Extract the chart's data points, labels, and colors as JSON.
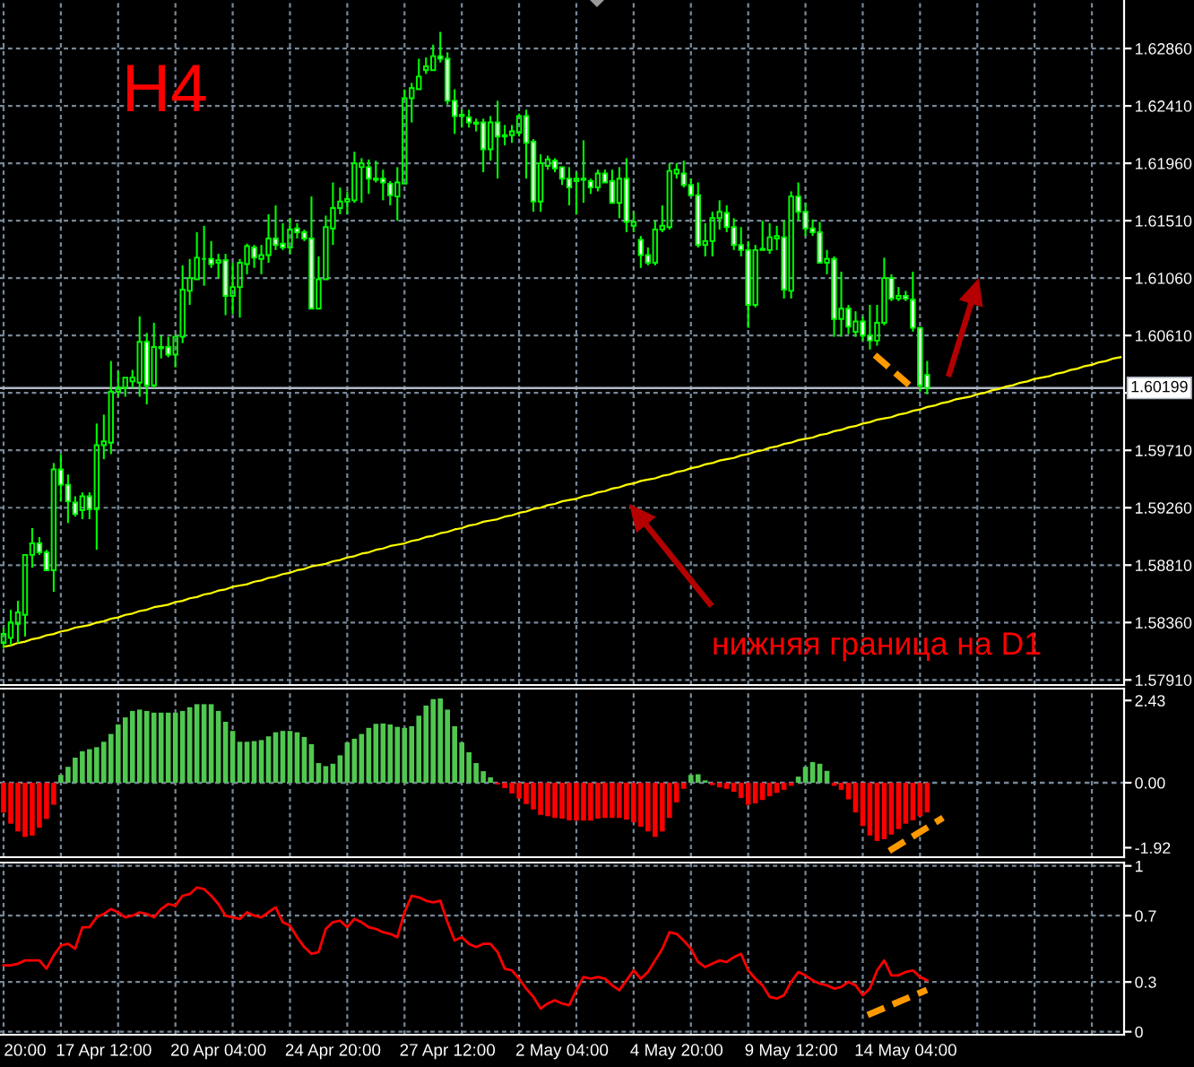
{
  "chart_data": [
    {
      "type": "candlestick",
      "categories": [
        null,
        null,
        null,
        null,
        null,
        null,
        null,
        null,
        null,
        null,
        null,
        null,
        null,
        null,
        null,
        null,
        null,
        null,
        null,
        null,
        null,
        null,
        null,
        null,
        null,
        null,
        null,
        null,
        null,
        null,
        null,
        null,
        null,
        null,
        null,
        null,
        null,
        null,
        null,
        null,
        null,
        null,
        null,
        null,
        null,
        null,
        null,
        null,
        null,
        null,
        null,
        null,
        null,
        null,
        null,
        null,
        null,
        null,
        null,
        null,
        null,
        null,
        null,
        null,
        null,
        null,
        null,
        null,
        null,
        null,
        null,
        null,
        null,
        null,
        null,
        null,
        null,
        null,
        null,
        null,
        null,
        null,
        null,
        null,
        null,
        null,
        null,
        null,
        null,
        null,
        null,
        null,
        null,
        null,
        null,
        null,
        null,
        null,
        null,
        null,
        null,
        null,
        null,
        null,
        null,
        null,
        null,
        null,
        null,
        null,
        null,
        null,
        null,
        null,
        null,
        null,
        null,
        null,
        null,
        null,
        null,
        null,
        null,
        null,
        null,
        null,
        null,
        null,
        null,
        null,
        null,
        null,
        null,
        null,
        null,
        null,
        null,
        null,
        null,
        null,
        null,
        null,
        null,
        null,
        null,
        null,
        null,
        null,
        null,
        null,
        null,
        null,
        null,
        null,
        null,
        null,
        null
      ],
      "ohlc": [
        [
          1.582,
          1.5832,
          1.5816,
          1.5827
        ],
        [
          1.5824,
          1.5846,
          1.5818,
          1.5836
        ],
        [
          1.5835,
          1.5853,
          1.582,
          1.5844
        ],
        [
          1.5842,
          1.5889,
          1.5825,
          1.5889
        ],
        [
          1.5889,
          1.591,
          1.5879,
          1.5898
        ],
        [
          1.5898,
          1.5903,
          1.5889,
          1.5891
        ],
        [
          1.5891,
          1.5893,
          1.5877,
          1.5877
        ],
        [
          1.5877,
          1.5961,
          1.586,
          1.5956
        ],
        [
          1.5956,
          1.5968,
          1.5931,
          1.5944
        ],
        [
          1.5944,
          1.5952,
          1.5914,
          1.5931
        ],
        [
          1.593,
          1.5935,
          1.5919,
          1.5921
        ],
        [
          1.5924,
          1.5938,
          1.5917,
          1.5935
        ],
        [
          1.5935,
          1.5938,
          1.5917,
          1.5925
        ],
        [
          1.5925,
          1.5992,
          1.5893,
          1.5975
        ],
        [
          1.5975,
          1.5999,
          1.5964,
          1.5978
        ],
        [
          1.5977,
          1.6041,
          1.5968,
          1.6017
        ],
        [
          1.6017,
          1.6033,
          1.6013,
          1.602
        ],
        [
          1.602,
          1.6028,
          1.6013,
          1.6028
        ],
        [
          1.6025,
          1.6034,
          1.602,
          1.6028
        ],
        [
          1.6024,
          1.6076,
          1.6013,
          1.6056
        ],
        [
          1.6056,
          1.6063,
          1.6007,
          1.6022
        ],
        [
          1.6022,
          1.6071,
          1.602,
          1.6052
        ],
        [
          1.6051,
          1.6061,
          1.6043,
          1.6052
        ],
        [
          1.6052,
          1.606,
          1.6044,
          1.6046
        ],
        [
          1.6046,
          1.6062,
          1.6036,
          1.606
        ],
        [
          1.606,
          1.6116,
          1.6055,
          1.6097
        ],
        [
          1.6096,
          1.6121,
          1.6085,
          1.6106
        ],
        [
          1.6105,
          1.6142,
          1.6105,
          1.6122
        ],
        [
          1.6121,
          1.6147,
          1.61,
          1.6121
        ],
        [
          1.6121,
          1.6135,
          1.6114,
          1.6117
        ],
        [
          1.6118,
          1.6125,
          1.6106,
          1.612
        ],
        [
          1.612,
          1.6125,
          1.6077,
          1.6092
        ],
        [
          1.6092,
          1.6118,
          1.6078,
          1.6099
        ],
        [
          1.6099,
          1.6121,
          1.6075,
          1.6118
        ],
        [
          1.6117,
          1.6133,
          1.6109,
          1.6131
        ],
        [
          1.613,
          1.6132,
          1.6114,
          1.6122
        ],
        [
          1.6121,
          1.6132,
          1.6109,
          1.6124
        ],
        [
          1.6124,
          1.6156,
          1.6118,
          1.6137
        ],
        [
          1.6137,
          1.6163,
          1.6128,
          1.6132
        ],
        [
          1.6133,
          1.6149,
          1.6128,
          1.613
        ],
        [
          1.613,
          1.6153,
          1.6125,
          1.6144
        ],
        [
          1.6145,
          1.6149,
          1.6137,
          1.6142
        ],
        [
          1.6142,
          1.6144,
          1.6135,
          1.6137
        ],
        [
          1.6137,
          1.617,
          1.6082,
          1.6082
        ],
        [
          1.6082,
          1.6123,
          1.6082,
          1.6105
        ],
        [
          1.6105,
          1.6155,
          1.6105,
          1.6146
        ],
        [
          1.6145,
          1.6181,
          1.6132,
          1.6161
        ],
        [
          1.6161,
          1.6177,
          1.6156,
          1.6166
        ],
        [
          1.6166,
          1.6174,
          1.6156,
          1.6168
        ],
        [
          1.6167,
          1.6205,
          1.6165,
          1.6196
        ],
        [
          1.6193,
          1.62,
          1.6165,
          1.6196
        ],
        [
          1.6193,
          1.6199,
          1.6172,
          1.6184
        ],
        [
          1.6183,
          1.6198,
          1.6181,
          1.6184
        ],
        [
          1.6184,
          1.6191,
          1.6167,
          1.6181
        ],
        [
          1.618,
          1.6182,
          1.6163,
          1.6171
        ],
        [
          1.617,
          1.6193,
          1.6151,
          1.6181
        ],
        [
          1.618,
          1.6254,
          1.618,
          1.6247
        ],
        [
          1.6247,
          1.6259,
          1.6228,
          1.6255
        ],
        [
          1.6254,
          1.6278,
          1.6254,
          1.6264
        ],
        [
          1.6269,
          1.6279,
          1.6266,
          1.6272
        ],
        [
          1.6269,
          1.6289,
          1.6269,
          1.628
        ],
        [
          1.628,
          1.6299,
          1.6275,
          1.6278
        ],
        [
          1.6278,
          1.6283,
          1.6242,
          1.6245
        ],
        [
          1.6245,
          1.6254,
          1.6219,
          1.6233
        ],
        [
          1.6234,
          1.6238,
          1.6224,
          1.6233
        ],
        [
          1.6232,
          1.6238,
          1.6224,
          1.6228
        ],
        [
          1.6228,
          1.6231,
          1.6221,
          1.6227
        ],
        [
          1.6228,
          1.6231,
          1.6189,
          1.6207
        ],
        [
          1.6207,
          1.6233,
          1.6198,
          1.6228
        ],
        [
          1.6228,
          1.6245,
          1.6184,
          1.6217
        ],
        [
          1.6217,
          1.6226,
          1.621,
          1.6218
        ],
        [
          1.6218,
          1.6226,
          1.6212,
          1.6221
        ],
        [
          1.622,
          1.6235,
          1.6217,
          1.6233
        ],
        [
          1.6233,
          1.6238,
          1.6184,
          1.6212
        ],
        [
          1.6213,
          1.6215,
          1.6158,
          1.6166
        ],
        [
          1.6166,
          1.6203,
          1.6158,
          1.6196
        ],
        [
          1.6194,
          1.6202,
          1.6191,
          1.6199
        ],
        [
          1.6198,
          1.62,
          1.6189,
          1.6192
        ],
        [
          1.6193,
          1.6193,
          1.6179,
          1.6184
        ],
        [
          1.6184,
          1.6193,
          1.6163,
          1.6177
        ],
        [
          1.6182,
          1.6189,
          1.6156,
          1.6184
        ],
        [
          1.6183,
          1.6214,
          1.6165,
          1.6184
        ],
        [
          1.6182,
          1.6184,
          1.6172,
          1.6177
        ],
        [
          1.6177,
          1.6191,
          1.6174,
          1.6188
        ],
        [
          1.6188,
          1.6191,
          1.6181,
          1.6181
        ],
        [
          1.6182,
          1.6191,
          1.6165,
          1.6165
        ],
        [
          1.6165,
          1.6193,
          1.6153,
          1.6184
        ],
        [
          1.6184,
          1.62,
          1.6142,
          1.615
        ],
        [
          1.6147,
          1.6158,
          1.6142,
          1.615
        ],
        [
          1.6136,
          1.6139,
          1.6114,
          1.6124
        ],
        [
          1.6124,
          1.613,
          1.6116,
          1.6118
        ],
        [
          1.6118,
          1.6151,
          1.6116,
          1.6144
        ],
        [
          1.6144,
          1.6163,
          1.6142,
          1.6147
        ],
        [
          1.6146,
          1.6196,
          1.6144,
          1.619
        ],
        [
          1.6188,
          1.6196,
          1.6184,
          1.6191
        ],
        [
          1.6188,
          1.6198,
          1.6177,
          1.6179
        ],
        [
          1.6179,
          1.6184,
          1.6171,
          1.6171
        ],
        [
          1.6171,
          1.6181,
          1.613,
          1.6132
        ],
        [
          1.6132,
          1.6149,
          1.6123,
          1.6135
        ],
        [
          1.6135,
          1.6158,
          1.6123,
          1.6153
        ],
        [
          1.6153,
          1.6167,
          1.6144,
          1.6158
        ],
        [
          1.6157,
          1.6163,
          1.6142,
          1.6146
        ],
        [
          1.6146,
          1.6153,
          1.6128,
          1.6132
        ],
        [
          1.6132,
          1.6146,
          1.6123,
          1.6128
        ],
        [
          1.6128,
          1.6135,
          1.6067,
          1.6085
        ],
        [
          1.6085,
          1.6132,
          1.6083,
          1.6128
        ],
        [
          1.6128,
          1.6151,
          1.6128,
          1.6129
        ],
        [
          1.6128,
          1.6149,
          1.6125,
          1.6138
        ],
        [
          1.6137,
          1.6147,
          1.6128,
          1.6139
        ],
        [
          1.6138,
          1.6151,
          1.609,
          1.6097
        ],
        [
          1.6096,
          1.6174,
          1.609,
          1.617
        ],
        [
          1.617,
          1.6181,
          1.6151,
          1.6158
        ],
        [
          1.6158,
          1.6165,
          1.6139,
          1.6145
        ],
        [
          1.6145,
          1.6152,
          1.6139,
          1.6142
        ],
        [
          1.6142,
          1.615,
          1.6118,
          1.6118
        ],
        [
          1.6118,
          1.6128,
          1.6109,
          1.6121
        ],
        [
          1.6121,
          1.6123,
          1.606,
          1.6074
        ],
        [
          1.6074,
          1.6111,
          1.606,
          1.6082
        ],
        [
          1.6082,
          1.6085,
          1.6062,
          1.6068
        ],
        [
          1.6064,
          1.608,
          1.606,
          1.6072
        ],
        [
          1.6072,
          1.6076,
          1.6057,
          1.6061
        ],
        [
          1.6061,
          1.6085,
          1.605,
          1.6057
        ],
        [
          1.6057,
          1.6085,
          1.6053,
          1.6071
        ],
        [
          1.6071,
          1.6122,
          1.6069,
          1.6106
        ],
        [
          1.6106,
          1.6109,
          1.6088,
          1.609
        ],
        [
          1.609,
          1.6099,
          1.6088,
          1.6092
        ],
        [
          1.6092,
          1.6096,
          1.6088,
          1.609
        ],
        [
          1.6089,
          1.6111,
          1.6064,
          1.6067
        ],
        [
          1.6067,
          1.6067,
          1.6017,
          1.6022
        ],
        [
          1.603,
          1.6041,
          1.6015,
          1.60199
        ],
        null,
        null,
        null,
        null,
        null,
        null,
        null,
        null,
        null,
        null,
        null,
        null,
        null,
        null,
        null,
        null,
        null,
        null,
        null,
        null,
        null,
        null,
        null,
        null,
        null,
        null,
        null
      ],
      "color": "#00ff00",
      "series": [
        {
          "type": "line",
          "color": "#ffff00",
          "values": [
            1.5817,
            1.5818,
            1.582,
            1.5821,
            1.5823,
            1.5824,
            1.5826,
            1.5827,
            1.5829,
            1.583,
            1.5832,
            1.5833,
            1.5834,
            1.5836,
            1.5837,
            1.5839,
            1.584,
            1.5842,
            1.5843,
            1.5845,
            1.5846,
            1.5848,
            1.5849,
            1.585,
            1.5852,
            1.5853,
            1.5855,
            1.5856,
            1.5858,
            1.5859,
            1.5861,
            1.5862,
            1.5864,
            1.5865,
            1.5866,
            1.5868,
            1.5869,
            1.5871,
            1.5872,
            1.5874,
            1.5875,
            1.5877,
            1.5878,
            1.588,
            1.5881,
            1.5882,
            1.5884,
            1.5885,
            1.5887,
            1.5888,
            1.589,
            1.5891,
            1.5893,
            1.5894,
            1.5896,
            1.5897,
            1.5898,
            1.59,
            1.5901,
            1.5903,
            1.5904,
            1.5906,
            1.5907,
            1.5909,
            1.591,
            1.5912,
            1.5913,
            1.5915,
            1.5916,
            1.5917,
            1.5919,
            1.592,
            1.5922,
            1.5923,
            1.5925,
            1.5926,
            1.5928,
            1.5929,
            1.5931,
            1.5932,
            1.5933,
            1.5935,
            1.5936,
            1.5938,
            1.5939,
            1.5941,
            1.5942,
            1.5944,
            1.5945,
            1.5947,
            1.5948,
            1.5949,
            1.5951,
            1.5952,
            1.5954,
            1.5955,
            1.5957,
            1.5958,
            1.596,
            1.5961,
            1.5963,
            1.5964,
            1.5965,
            1.5967,
            1.5968,
            1.597,
            1.5971,
            1.5973,
            1.5974,
            1.5976,
            1.5977,
            1.5979,
            1.598,
            1.5981,
            1.5983,
            1.5984,
            1.5986,
            1.5987,
            1.5989,
            1.599,
            1.5992,
            1.5993,
            1.5995,
            1.5996,
            1.5997,
            1.5999,
            1.6,
            1.6002,
            1.6003,
            1.6005,
            1.6006,
            1.6008,
            1.6009,
            1.6011,
            1.6012,
            1.6013,
            1.6015,
            1.6016,
            1.6018,
            1.6019,
            1.6021,
            1.6022,
            1.6024,
            1.6025,
            1.6027,
            1.6028,
            1.6029,
            1.6031,
            1.6032,
            1.6034,
            1.6035,
            1.6037,
            1.6038,
            1.604,
            1.6041,
            1.6043,
            1.6044
          ]
        }
      ],
      "ylim": [
        1.5787,
        1.6324
      ],
      "yticks": [
        {
          "value": 1.6286,
          "label": "1.62860"
        },
        {
          "value": 1.6241,
          "label": "1.62410"
        },
        {
          "value": 1.6196,
          "label": "1.61960"
        },
        {
          "value": 1.6151,
          "label": "1.61510"
        },
        {
          "value": 1.6106,
          "label": "1.61060"
        },
        {
          "value": 1.6061,
          "label": "1.60610"
        },
        {
          "value": 1.6016,
          "label": null
        },
        {
          "value": 1.5971,
          "label": "1.59710"
        },
        {
          "value": 1.5926,
          "label": "1.59260"
        },
        {
          "value": 1.5881,
          "label": "1.58810"
        },
        {
          "value": 1.5836,
          "label": "1.58360"
        },
        {
          "value": 1.5791,
          "label": "1.57910"
        }
      ],
      "ref_lines": [
        {
          "axis": "y",
          "value": 1.60199,
          "label": "1.60199",
          "color": "#b0b8c4"
        }
      ],
      "grid": true,
      "tick_labels": "y",
      "annotations": [
        "H4",
        "нижняя граница на D1"
      ]
    },
    {
      "type": "bar",
      "categories": [
        null,
        null,
        null,
        null,
        null,
        null,
        null,
        null,
        null,
        null,
        null,
        null,
        null,
        null,
        null,
        null,
        null,
        null,
        null,
        null,
        null,
        null,
        null,
        null,
        null,
        null,
        null,
        null,
        null,
        null,
        null,
        null,
        null,
        null,
        null,
        null,
        null,
        null,
        null,
        null,
        null,
        null,
        null,
        null,
        null,
        null,
        null,
        null,
        null,
        null,
        null,
        null,
        null,
        null,
        null,
        null,
        null,
        null,
        null,
        null,
        null,
        null,
        null,
        null,
        null,
        null,
        null,
        null,
        null,
        null,
        null,
        null,
        null,
        null,
        null,
        null,
        null,
        null,
        null,
        null,
        null,
        null,
        null,
        null,
        null,
        null,
        null,
        null,
        null,
        null,
        null,
        null,
        null,
        null,
        null,
        null,
        null,
        null,
        null,
        null,
        null,
        null,
        null,
        null,
        null,
        null,
        null,
        null,
        null,
        null,
        null,
        null,
        null,
        null,
        null,
        null,
        null,
        null,
        null,
        null,
        null,
        null,
        null,
        null,
        null,
        null,
        null,
        null,
        null,
        null,
        null,
        null,
        null,
        null,
        null,
        null,
        null,
        null,
        null,
        null,
        null,
        null,
        null,
        null,
        null,
        null,
        null,
        null,
        null,
        null,
        null,
        null,
        null,
        null,
        null,
        null,
        null
      ],
      "values": [
        -0.88,
        -1.21,
        -1.44,
        -1.6,
        -1.56,
        -1.33,
        -1.07,
        -0.65,
        0.23,
        0.47,
        0.74,
        0.93,
        0.99,
        1.05,
        1.21,
        1.44,
        1.72,
        1.93,
        2.12,
        2.16,
        2.12,
        2.07,
        2.07,
        2.07,
        2.07,
        2.12,
        2.23,
        2.32,
        2.32,
        2.32,
        2.12,
        1.8,
        1.53,
        1.21,
        1.21,
        1.23,
        1.26,
        1.37,
        1.49,
        1.53,
        1.53,
        1.49,
        1.35,
        1.14,
        0.58,
        0.49,
        0.56,
        0.81,
        1.19,
        1.3,
        1.44,
        1.62,
        1.74,
        1.75,
        1.72,
        1.65,
        1.62,
        1.67,
        1.98,
        2.28,
        2.47,
        2.49,
        2.16,
        1.67,
        1.19,
        0.9,
        0.58,
        0.34,
        0.16,
        -0.05,
        -0.16,
        -0.32,
        -0.47,
        -0.63,
        -0.79,
        -0.95,
        -0.99,
        -1.04,
        -1.06,
        -1.11,
        -1.12,
        -1.12,
        -1.12,
        -1.06,
        -1.04,
        -1.04,
        -1.04,
        -1.09,
        -1.17,
        -1.3,
        -1.44,
        -1.6,
        -1.44,
        -1.04,
        -0.58,
        -0.18,
        0.23,
        0.25,
        0.07,
        -0.07,
        -0.14,
        -0.18,
        -0.27,
        -0.45,
        -0.65,
        -0.61,
        -0.51,
        -0.4,
        -0.3,
        -0.21,
        -0.09,
        0.18,
        0.47,
        0.61,
        0.56,
        0.35,
        -0.09,
        -0.21,
        -0.49,
        -0.88,
        -1.28,
        -1.56,
        -1.72,
        -1.67,
        -1.53,
        -1.37,
        -1.21,
        -1.11,
        -0.99,
        -0.88,
        null,
        null,
        null,
        null,
        null,
        null,
        null,
        null,
        null,
        null,
        null,
        null,
        null,
        null,
        null,
        null,
        null,
        null,
        null,
        null,
        null,
        null,
        null,
        null,
        null,
        null,
        null
      ],
      "colors": [
        "#ff0000",
        "#ff0000",
        "#ff0000",
        "#ff0000",
        "#ff0000",
        "#ff0000",
        "#ff0000",
        "#ff0000",
        "#50c850",
        "#50c850",
        "#50c850",
        "#50c850",
        "#50c850",
        "#50c850",
        "#50c850",
        "#50c850",
        "#50c850",
        "#50c850",
        "#50c850",
        "#50c850",
        "#50c850",
        "#50c850",
        "#50c850",
        "#50c850",
        "#50c850",
        "#50c850",
        "#50c850",
        "#50c850",
        "#50c850",
        "#50c850",
        "#50c850",
        "#50c850",
        "#50c850",
        "#50c850",
        "#50c850",
        "#50c850",
        "#50c850",
        "#50c850",
        "#50c850",
        "#50c850",
        "#50c850",
        "#50c850",
        "#50c850",
        "#50c850",
        "#50c850",
        "#50c850",
        "#50c850",
        "#50c850",
        "#50c850",
        "#50c850",
        "#50c850",
        "#50c850",
        "#50c850",
        "#50c850",
        "#50c850",
        "#50c850",
        "#50c850",
        "#50c850",
        "#50c850",
        "#50c850",
        "#50c850",
        "#50c850",
        "#50c850",
        "#50c850",
        "#50c850",
        "#50c850",
        "#50c850",
        "#50c850",
        "#50c850",
        "#ff0000",
        "#ff0000",
        "#ff0000",
        "#ff0000",
        "#ff0000",
        "#ff0000",
        "#ff0000",
        "#ff0000",
        "#ff0000",
        "#ff0000",
        "#ff0000",
        "#ff0000",
        "#ff0000",
        "#ff0000",
        "#ff0000",
        "#ff0000",
        "#ff0000",
        "#ff0000",
        "#ff0000",
        "#ff0000",
        "#ff0000",
        "#ff0000",
        "#ff0000",
        "#ff0000",
        "#ff0000",
        "#ff0000",
        "#ff0000",
        "#50c850",
        "#50c850",
        "#50c850",
        "#ff0000",
        "#ff0000",
        "#ff0000",
        "#ff0000",
        "#ff0000",
        "#ff0000",
        "#ff0000",
        "#ff0000",
        "#ff0000",
        "#ff0000",
        "#ff0000",
        "#ff0000",
        "#50c850",
        "#50c850",
        "#50c850",
        "#50c850",
        "#50c850",
        "#ff0000",
        "#ff0000",
        "#ff0000",
        "#ff0000",
        "#ff0000",
        "#ff0000",
        "#ff0000",
        "#ff0000",
        "#ff0000",
        "#ff0000",
        "#ff0000",
        "#ff0000",
        "#ff0000",
        "#ff0000",
        null,
        null,
        null,
        null,
        null,
        null,
        null,
        null,
        null,
        null,
        null,
        null,
        null,
        null,
        null,
        null,
        null,
        null,
        null,
        null,
        null,
        null,
        null,
        null,
        null,
        null,
        null
      ],
      "ylim": [
        -2.2,
        2.78
      ],
      "yticks": [
        2.43,
        {
          "value": 0,
          "label": "0.00"
        },
        -1.92
      ],
      "ref_lines": [
        {
          "axis": "y",
          "value": 0,
          "color": "#778899",
          "line_style": "dashed"
        }
      ],
      "grid": "x",
      "tick_labels": "y"
    },
    {
      "type": "line",
      "categories": [
        null,
        null,
        null,
        "20:00",
        null,
        null,
        null,
        null,
        null,
        null,
        null,
        null,
        null,
        null,
        "17 Apr 12:00",
        null,
        null,
        null,
        null,
        null,
        null,
        null,
        null,
        null,
        null,
        null,
        null,
        null,
        null,
        null,
        "20 Apr 04:00",
        null,
        null,
        null,
        null,
        null,
        null,
        null,
        null,
        null,
        null,
        null,
        null,
        null,
        null,
        null,
        "24 Apr 20:00",
        null,
        null,
        null,
        null,
        null,
        null,
        null,
        null,
        null,
        null,
        null,
        null,
        null,
        null,
        null,
        "27 Apr 12:00",
        null,
        null,
        null,
        null,
        null,
        null,
        null,
        null,
        null,
        null,
        null,
        null,
        null,
        null,
        null,
        "2 May 04:00",
        null,
        null,
        null,
        null,
        null,
        null,
        null,
        null,
        null,
        null,
        null,
        null,
        null,
        null,
        null,
        "4 May 20:00",
        null,
        null,
        null,
        null,
        null,
        null,
        null,
        null,
        null,
        null,
        null,
        null,
        null,
        null,
        null,
        "9 May 12:00",
        null,
        null,
        null,
        null,
        null,
        null,
        null,
        null,
        null,
        null,
        null,
        null,
        null,
        null,
        null,
        "14 May 04:00",
        null,
        null,
        null,
        null,
        null,
        null,
        null,
        null,
        null,
        null,
        null,
        null,
        null,
        null,
        null,
        null,
        null,
        null,
        null,
        null,
        null,
        null,
        null,
        null,
        null,
        null,
        null,
        null,
        null,
        null
      ],
      "values": [
        0.4,
        0.4,
        0.41,
        0.43,
        0.43,
        0.43,
        0.38,
        0.46,
        0.52,
        0.53,
        0.5,
        0.63,
        0.63,
        0.69,
        0.71,
        0.74,
        0.72,
        0.69,
        0.7,
        0.72,
        0.71,
        0.69,
        0.74,
        0.77,
        0.76,
        0.82,
        0.83,
        0.87,
        0.86,
        0.82,
        0.77,
        0.7,
        0.69,
        0.68,
        0.72,
        0.7,
        0.69,
        0.72,
        0.75,
        0.66,
        0.64,
        0.57,
        0.51,
        0.47,
        0.48,
        0.62,
        0.66,
        0.67,
        0.63,
        0.68,
        0.66,
        0.63,
        0.62,
        0.6,
        0.59,
        0.57,
        0.72,
        0.82,
        0.81,
        0.79,
        0.78,
        0.79,
        0.66,
        0.55,
        0.57,
        0.53,
        0.51,
        0.53,
        0.53,
        0.48,
        0.38,
        0.37,
        0.32,
        0.26,
        0.21,
        0.14,
        0.17,
        0.19,
        0.17,
        0.16,
        0.25,
        0.33,
        0.32,
        0.33,
        0.32,
        0.28,
        0.25,
        0.31,
        0.37,
        0.32,
        0.36,
        0.43,
        0.5,
        0.6,
        0.59,
        0.55,
        0.5,
        0.42,
        0.39,
        0.41,
        0.43,
        0.42,
        0.45,
        0.47,
        0.37,
        0.32,
        0.28,
        0.21,
        0.2,
        0.22,
        0.3,
        0.36,
        0.34,
        0.31,
        0.29,
        0.28,
        0.26,
        0.27,
        0.3,
        0.28,
        0.22,
        0.26,
        0.37,
        0.43,
        0.34,
        0.34,
        0.36,
        0.37,
        0.33,
        0.31,
        null,
        null,
        null,
        null,
        null,
        null,
        null,
        null,
        null,
        null,
        null,
        null,
        null,
        null,
        null,
        null,
        null,
        null,
        null,
        null,
        null,
        null,
        null,
        null,
        null,
        null,
        null
      ],
      "color": "#ff0000",
      "ylim": [
        -0.018,
        1.02
      ],
      "yticks": [
        1,
        0.7,
        0.3,
        0
      ],
      "grid": true
    }
  ]
}
